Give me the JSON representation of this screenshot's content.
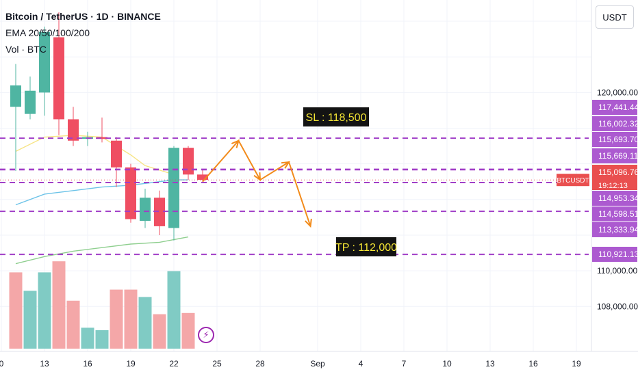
{
  "legend": {
    "symbol_line": "Bitcoin / TetherUS · 1D · BINANCE",
    "ema_line": "EMA 20/50/100/200",
    "vol_line": "Vol · BTC"
  },
  "currency_button": "USDT",
  "symbol_tag": "BTCUSDT",
  "countdown": "19:12:13",
  "colors": {
    "up": "#4fb5a2",
    "down": "#ef4e62",
    "vol_up": "#80cbc4",
    "vol_down": "#f4a7a8",
    "level": "#a13ec7",
    "level_label": "#ac5ad0",
    "arrow": "#f28b1b",
    "ema20": "#f7e484",
    "ema50": "#6cc3e8",
    "ema200": "#8fcf8f",
    "price_tag": "#e94f4f"
  },
  "chart_data": {
    "type": "candlestick",
    "x_tick_labels": [
      "0",
      "13",
      "16",
      "19",
      "22",
      "25",
      "28",
      "Sep",
      "4",
      "7",
      "10",
      "13",
      "16",
      "19"
    ],
    "ylim": [
      106400,
      124500
    ],
    "y_tick_labels": [
      "120,000.00",
      "110,000.00",
      "108,000.00"
    ],
    "candles": [
      {
        "date": "Aug 11",
        "open": 119200,
        "high": 121600,
        "low": 115600,
        "close": 120400
      },
      {
        "date": "Aug 12",
        "open": 118800,
        "high": 120900,
        "low": 118500,
        "close": 120100
      },
      {
        "date": "Aug 13",
        "open": 120000,
        "high": 123700,
        "low": 118700,
        "close": 123400
      },
      {
        "date": "Aug 14",
        "open": 123100,
        "high": 124500,
        "low": 117600,
        "close": 118500
      },
      {
        "date": "Aug 15",
        "open": 118500,
        "high": 119200,
        "low": 117000,
        "close": 117300
      },
      {
        "date": "Aug 16",
        "open": 117400,
        "high": 117800,
        "low": 117000,
        "close": 117500
      },
      {
        "date": "Aug 17",
        "open": 117500,
        "high": 118600,
        "low": 117200,
        "close": 117400
      },
      {
        "date": "Aug 18",
        "open": 117300,
        "high": 117500,
        "low": 114700,
        "close": 115800
      },
      {
        "date": "Aug 19",
        "open": 115800,
        "high": 116000,
        "low": 112700,
        "close": 112900
      },
      {
        "date": "Aug 20",
        "open": 112800,
        "high": 114600,
        "low": 112400,
        "close": 114100
      },
      {
        "date": "Aug 21",
        "open": 114100,
        "high": 114500,
        "low": 112000,
        "close": 112500
      },
      {
        "date": "Aug 22",
        "open": 112400,
        "high": 117000,
        "low": 111700,
        "close": 116900
      },
      {
        "date": "Aug 23",
        "open": 116900,
        "high": 117000,
        "low": 115100,
        "close": 115400
      },
      {
        "date": "Aug 24",
        "open": 115400,
        "high": 115700,
        "low": 115000,
        "close": 115100
      }
    ],
    "volume": [
      {
        "date": "Aug 11",
        "value": 0.62,
        "direction": "down"
      },
      {
        "date": "Aug 12",
        "value": 0.47,
        "direction": "up"
      },
      {
        "date": "Aug 13",
        "value": 0.62,
        "direction": "up"
      },
      {
        "date": "Aug 14",
        "value": 0.71,
        "direction": "down"
      },
      {
        "date": "Aug 15",
        "value": 0.39,
        "direction": "down"
      },
      {
        "date": "Aug 16",
        "value": 0.17,
        "direction": "up"
      },
      {
        "date": "Aug 17",
        "value": 0.15,
        "direction": "up"
      },
      {
        "date": "Aug 18",
        "value": 0.48,
        "direction": "down"
      },
      {
        "date": "Aug 19",
        "value": 0.48,
        "direction": "down"
      },
      {
        "date": "Aug 20",
        "value": 0.42,
        "direction": "up"
      },
      {
        "date": "Aug 21",
        "value": 0.28,
        "direction": "down"
      },
      {
        "date": "Aug 22",
        "value": 0.63,
        "direction": "up"
      },
      {
        "date": "Aug 23",
        "value": 0.29,
        "direction": "down"
      }
    ],
    "ema_series": [
      {
        "period": 20,
        "points": [
          [
            11,
            116700
          ],
          [
            13,
            117500
          ],
          [
            15,
            117600
          ],
          [
            17,
            117500
          ],
          [
            19,
            116500
          ],
          [
            20,
            115900
          ],
          [
            22,
            115400
          ]
        ]
      },
      {
        "period": 50,
        "points": [
          [
            11,
            113700
          ],
          [
            13,
            114300
          ],
          [
            15,
            114500
          ],
          [
            17,
            114700
          ],
          [
            19,
            114800
          ],
          [
            22,
            115100
          ],
          [
            23,
            115100
          ]
        ]
      },
      {
        "period": 200,
        "points": [
          [
            11,
            110400
          ],
          [
            13,
            110800
          ],
          [
            15,
            111100
          ],
          [
            17,
            111300
          ],
          [
            19,
            111500
          ],
          [
            21,
            111600
          ],
          [
            23,
            111900
          ]
        ]
      }
    ],
    "current_price": 115096.76,
    "levels": [
      {
        "label": "117,441.44",
        "value": 117441.44,
        "line": true
      },
      {
        "label": "116,002.32",
        "value": 116002.32,
        "line": false
      },
      {
        "label": "115,693.70",
        "value": 115693.7,
        "line": true
      },
      {
        "label": "115,669.11",
        "value": 115669.11,
        "line": true
      },
      {
        "label": "114,953.34",
        "value": 114953.34,
        "line": true
      },
      {
        "label": "114,598.51",
        "value": 114598.51,
        "line": false
      },
      {
        "label": "113,333.94",
        "value": 113333.94,
        "line": true
      },
      {
        "label": "110,921.13",
        "value": 110921.13,
        "line": true
      }
    ],
    "annotations": [
      {
        "text": "SL : 118,500"
      },
      {
        "text": "TP : 112,000"
      }
    ],
    "projection_path": [
      [
        24,
        115000
      ],
      [
        26.5,
        117300
      ],
      [
        28,
        115100
      ],
      [
        30,
        116100
      ],
      [
        31.5,
        112500
      ]
    ]
  }
}
